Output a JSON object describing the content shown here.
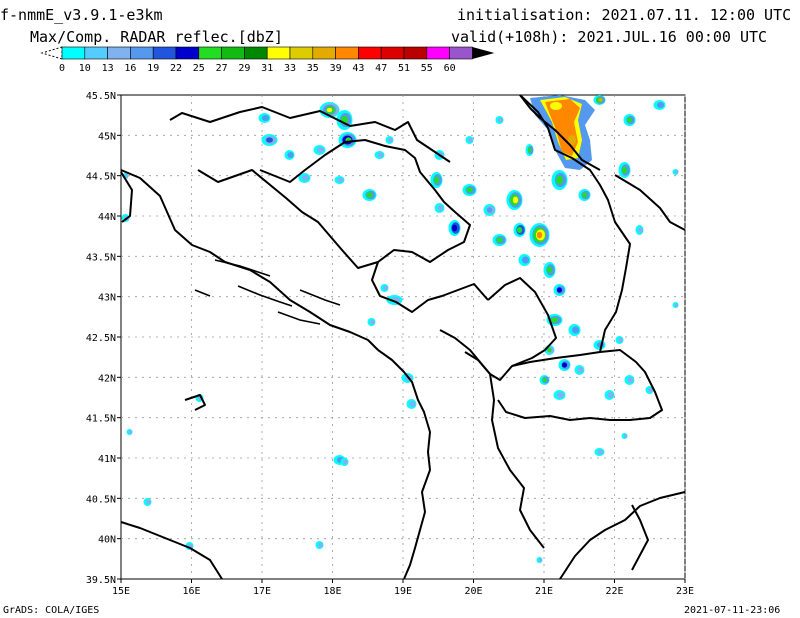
{
  "header": {
    "model": "f-nmmE_v3.9.1-e3km",
    "field": "Max/Comp. RADAR reflec.[dbZ]",
    "initialisation": "initialisation: 2021.07.11. 12:00 UTC",
    "valid": "valid(+108h): 2021.JUL.16 00:00 UTC"
  },
  "colorbar": {
    "levels": [
      "0",
      "10",
      "13",
      "16",
      "19",
      "22",
      "25",
      "27",
      "29",
      "31",
      "33",
      "35",
      "39",
      "43",
      "47",
      "51",
      "55",
      "60"
    ],
    "colors": [
      "#00ffff",
      "#55ccff",
      "#7fb2ee",
      "#5599ee",
      "#2255dd",
      "#0000cc",
      "#22dd22",
      "#11bb11",
      "#008800",
      "#ffff00",
      "#ddcc00",
      "#e3ab00",
      "#ff8800",
      "#ff0000",
      "#dd0000",
      "#bb0000",
      "#ff00ff",
      "#9955cc"
    ]
  },
  "map": {
    "lat_ticks": [
      "45.5N",
      "45N",
      "44.5N",
      "44N",
      "43.5N",
      "43N",
      "42.5N",
      "42N",
      "41.5N",
      "41N",
      "40.5N",
      "40N",
      "39.5N"
    ],
    "lon_ticks": [
      "15E",
      "16E",
      "17E",
      "18E",
      "19E",
      "20E",
      "21E",
      "22E",
      "23E"
    ]
  },
  "footer": {
    "left": "GrADS: COLA/IGES",
    "right": "2021-07-11-23:06"
  }
}
